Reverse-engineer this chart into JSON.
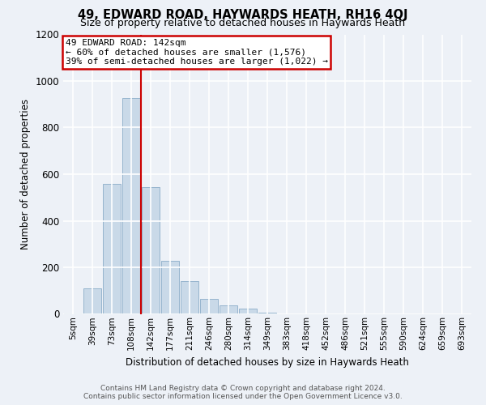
{
  "title": "49, EDWARD ROAD, HAYWARDS HEATH, RH16 4QJ",
  "subtitle": "Size of property relative to detached houses in Haywards Heath",
  "xlabel": "Distribution of detached houses by size in Haywards Heath",
  "ylabel": "Number of detached properties",
  "footer_line1": "Contains HM Land Registry data © Crown copyright and database right 2024.",
  "footer_line2": "Contains public sector information licensed under the Open Government Licence v3.0.",
  "bar_labels": [
    "5sqm",
    "39sqm",
    "73sqm",
    "108sqm",
    "142sqm",
    "177sqm",
    "211sqm",
    "246sqm",
    "280sqm",
    "314sqm",
    "349sqm",
    "383sqm",
    "418sqm",
    "452sqm",
    "486sqm",
    "521sqm",
    "555sqm",
    "590sqm",
    "624sqm",
    "659sqm",
    "693sqm"
  ],
  "bar_values": [
    3,
    108,
    557,
    928,
    543,
    228,
    140,
    63,
    35,
    22,
    5,
    0,
    0,
    0,
    0,
    0,
    0,
    0,
    0,
    0,
    0
  ],
  "bar_color": "#c9d9e8",
  "bar_edgecolor": "#8aacc8",
  "vline_color": "#cc0000",
  "annotation_title": "49 EDWARD ROAD: 142sqm",
  "annotation_line1": "← 60% of detached houses are smaller (1,576)",
  "annotation_line2": "39% of semi-detached houses are larger (1,022) →",
  "annotation_box_color": "#cc0000",
  "ylim": [
    0,
    1200
  ],
  "yticks": [
    0,
    200,
    400,
    600,
    800,
    1000,
    1200
  ],
  "background_color": "#edf1f7",
  "plot_background_color": "#edf1f7",
  "grid_color": "#ffffff",
  "title_fontsize": 10.5,
  "subtitle_fontsize": 9
}
